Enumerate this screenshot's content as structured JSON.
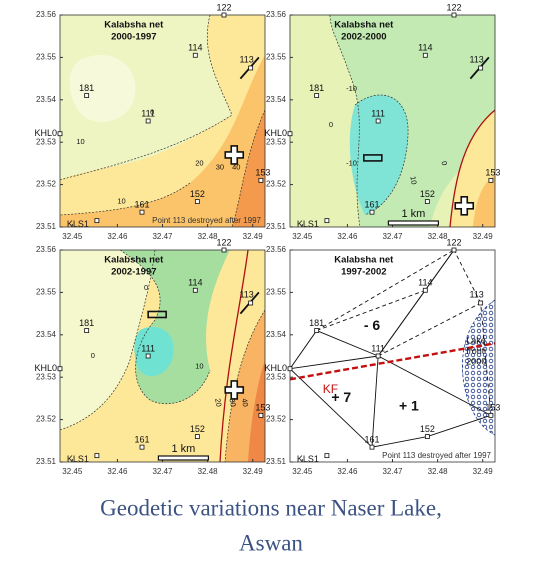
{
  "stations": [
    "122",
    "114",
    "113",
    "181",
    "111",
    "KHL0",
    "161",
    "152",
    "153",
    "KLS1"
  ],
  "yticks": [
    "23.56",
    "23.55",
    "23.54",
    "23.53",
    "23.52",
    "23.51"
  ],
  "xticks": [
    "32.45",
    "32.46",
    "32.47",
    "32.48",
    "32.49"
  ],
  "panels": [
    {
      "title": [
        "Kalabsha net",
        "2000-1997"
      ],
      "contour_labels": [
        "10",
        "0",
        "10",
        "20",
        "30",
        "40"
      ],
      "note": "Point 113 destroyed after 1997"
    },
    {
      "title": [
        "Kalabsha net",
        "2002-2000"
      ],
      "contour_labels": [
        "0",
        "-10",
        "-10",
        "10",
        "0"
      ],
      "scale": "1 km"
    },
    {
      "title": [
        "Kalabsha net",
        "2002-1997"
      ],
      "contour_labels": [
        "0",
        "0",
        "10",
        "20",
        "30",
        "40",
        "10"
      ],
      "scale": "1 km"
    },
    {
      "title": [
        "Kalabsha net",
        "1997-2002"
      ],
      "zone_labels": [
        "- 6",
        "+ 7",
        "+ 1"
      ],
      "fault": "KF",
      "lake": [
        "Lake",
        "front",
        "2000"
      ],
      "note": "Point 113 destroyed after 1997"
    }
  ],
  "caption": [
    "Geodetic variations near Naser Lake,",
    "Aswan"
  ]
}
